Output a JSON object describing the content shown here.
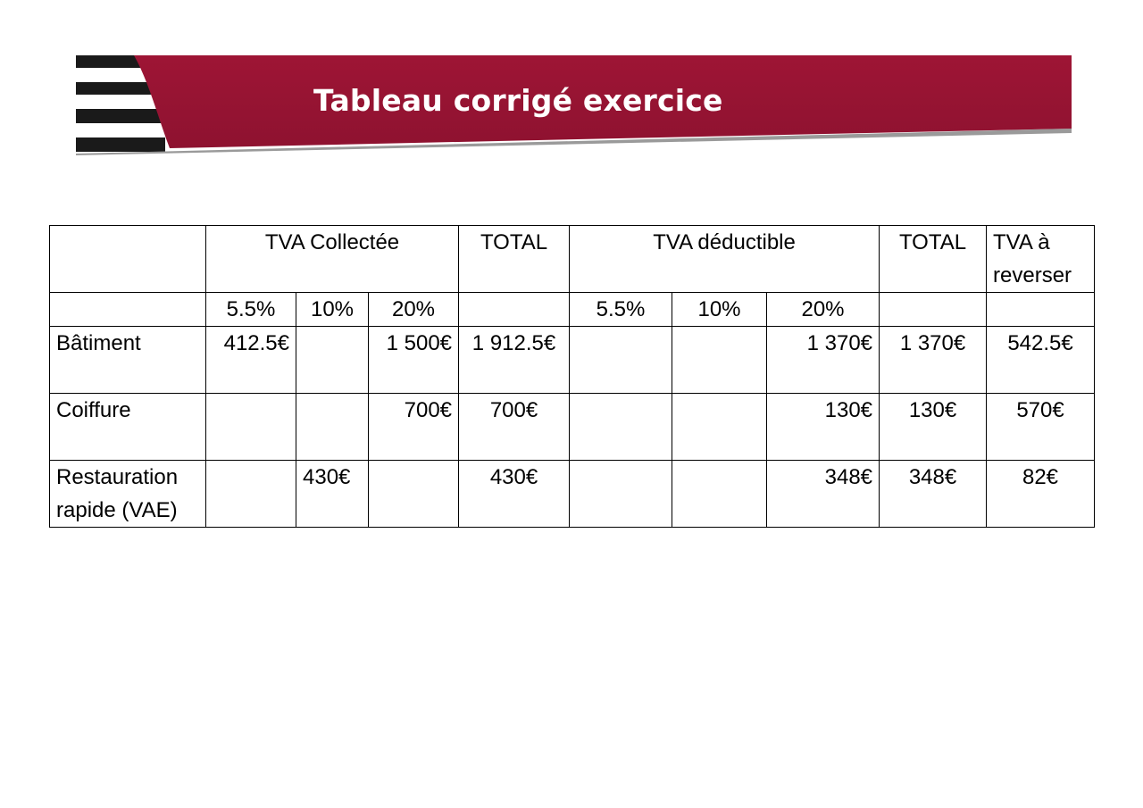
{
  "banner": {
    "title": "Tableau corrigé exercice",
    "accent_color": "#9b1434",
    "stripe_color": "#1a1a1a"
  },
  "table": {
    "header": {
      "collected": "TVA Collectée",
      "total_1": "TOTAL",
      "deductible": "TVA déductible",
      "total_2": "TOTAL",
      "to_pay": "TVA à reverser"
    },
    "rates": {
      "collected": [
        "5.5%",
        "10%",
        "20%"
      ],
      "deductible": [
        "5.5%",
        "10%",
        "20%"
      ]
    },
    "rows": [
      {
        "label": "Bâtiment",
        "c55": "412.5€",
        "c10": "",
        "c20": "1 500€",
        "total_c": "1 912.5€",
        "d55": "",
        "d10": "",
        "d20": "1 370€",
        "total_d": "1 370€",
        "pay": "542.5€"
      },
      {
        "label": "Coiffure",
        "c55": "",
        "c10": "",
        "c20": "700€",
        "total_c": "700€",
        "d55": "",
        "d10": "",
        "d20": "130€",
        "total_d": "130€",
        "pay": "570€"
      },
      {
        "label": "Restauration rapide (VAE)",
        "c55": "",
        "c10": "430€",
        "c20": "",
        "total_c": "430€",
        "d55": "",
        "d10": "",
        "d20": "348€",
        "total_d": "348€",
        "pay": "82€"
      }
    ]
  }
}
